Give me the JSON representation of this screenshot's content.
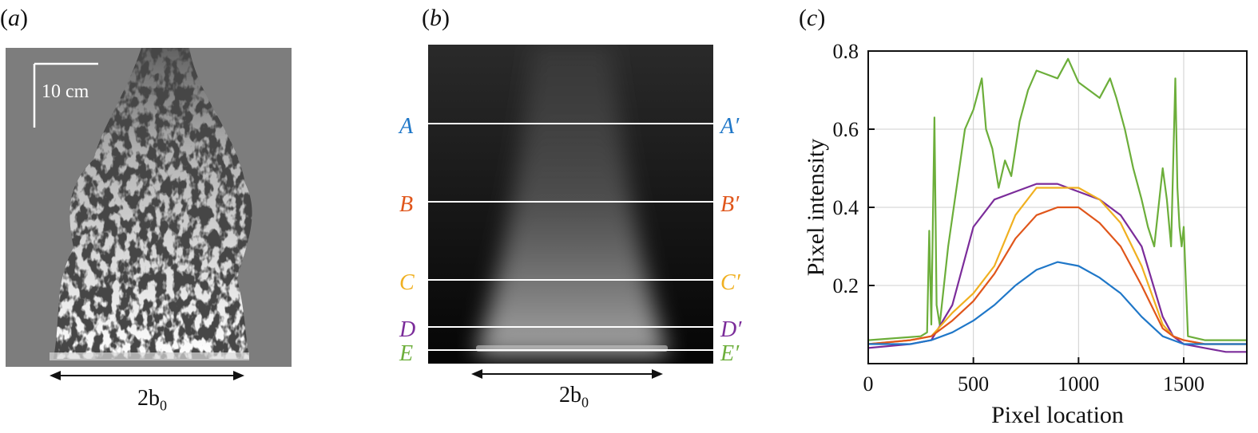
{
  "panels": {
    "a": {
      "label_open": "(",
      "letter": "a",
      "label_close": ")",
      "scale_text": "10 cm",
      "width_text": "2b",
      "width_sub": "0"
    },
    "b": {
      "label_open": "(",
      "letter": "b",
      "label_close": ")",
      "width_text": "2b",
      "width_sub": "0",
      "rows": [
        {
          "left": "A",
          "right": "A′",
          "color": "#1f77c8"
        },
        {
          "left": "B",
          "right": "B′",
          "color": "#e0561b"
        },
        {
          "left": "C",
          "right": "C′",
          "color": "#f0b020"
        },
        {
          "left": "D",
          "right": "D′",
          "color": "#7b2c9a"
        },
        {
          "left": "E",
          "right": "E′",
          "color": "#6cae3a"
        }
      ]
    },
    "c": {
      "label_open": "(",
      "letter": "c",
      "label_close": ")"
    }
  },
  "chart_data": {
    "type": "line",
    "xlabel": "Pixel location",
    "ylabel": "Pixel intensity",
    "xlim": [
      0,
      1800
    ],
    "ylim": [
      0,
      0.8
    ],
    "xticks": [
      0,
      500,
      1000,
      1500
    ],
    "yticks": [
      0.2,
      0.4,
      0.6,
      0.8
    ],
    "ytick_labels": [
      "0.2",
      "0.4",
      "0.6",
      "0.8"
    ],
    "grid": true,
    "legend": "none",
    "series": [
      {
        "color": "#6cae3a",
        "x": [
          0,
          250,
          280,
          290,
          300,
          315,
          325,
          340,
          380,
          420,
          460,
          500,
          540,
          560,
          590,
          620,
          650,
          680,
          720,
          760,
          800,
          850,
          900,
          950,
          1000,
          1050,
          1100,
          1150,
          1180,
          1220,
          1260,
          1300,
          1330,
          1360,
          1400,
          1420,
          1440,
          1460,
          1470,
          1480,
          1490,
          1500,
          1520,
          1600,
          1700,
          1800
        ],
        "y": [
          0.06,
          0.07,
          0.08,
          0.34,
          0.1,
          0.63,
          0.15,
          0.1,
          0.3,
          0.45,
          0.6,
          0.65,
          0.73,
          0.6,
          0.55,
          0.45,
          0.52,
          0.48,
          0.62,
          0.7,
          0.75,
          0.74,
          0.73,
          0.78,
          0.72,
          0.7,
          0.68,
          0.73,
          0.68,
          0.6,
          0.5,
          0.42,
          0.35,
          0.3,
          0.5,
          0.42,
          0.3,
          0.73,
          0.45,
          0.35,
          0.3,
          0.35,
          0.07,
          0.06,
          0.06,
          0.06
        ]
      },
      {
        "color": "#7b2c9a",
        "x": [
          0,
          200,
          300,
          400,
          500,
          600,
          700,
          800,
          900,
          1000,
          1100,
          1200,
          1300,
          1400,
          1450,
          1500,
          1600,
          1700,
          1800
        ],
        "y": [
          0.04,
          0.05,
          0.06,
          0.15,
          0.35,
          0.42,
          0.44,
          0.46,
          0.46,
          0.44,
          0.42,
          0.38,
          0.3,
          0.12,
          0.07,
          0.05,
          0.04,
          0.03,
          0.03
        ]
      },
      {
        "color": "#f0b020",
        "x": [
          0,
          200,
          300,
          400,
          500,
          600,
          700,
          800,
          900,
          1000,
          1100,
          1200,
          1300,
          1400,
          1450,
          1500,
          1600,
          1700,
          1800
        ],
        "y": [
          0.05,
          0.06,
          0.07,
          0.13,
          0.18,
          0.25,
          0.38,
          0.45,
          0.45,
          0.45,
          0.42,
          0.36,
          0.25,
          0.1,
          0.07,
          0.06,
          0.05,
          0.05,
          0.05
        ]
      },
      {
        "color": "#e0561b",
        "x": [
          0,
          200,
          300,
          400,
          500,
          600,
          700,
          800,
          900,
          1000,
          1100,
          1200,
          1300,
          1400,
          1450,
          1500,
          1600,
          1700,
          1800
        ],
        "y": [
          0.05,
          0.06,
          0.07,
          0.11,
          0.16,
          0.23,
          0.32,
          0.38,
          0.4,
          0.4,
          0.36,
          0.3,
          0.2,
          0.09,
          0.07,
          0.06,
          0.05,
          0.05,
          0.05
        ]
      },
      {
        "color": "#1f77c8",
        "x": [
          0,
          200,
          300,
          400,
          500,
          600,
          700,
          800,
          900,
          1000,
          1100,
          1200,
          1300,
          1400,
          1450,
          1500,
          1600,
          1700,
          1800
        ],
        "y": [
          0.05,
          0.05,
          0.06,
          0.08,
          0.11,
          0.15,
          0.2,
          0.24,
          0.26,
          0.25,
          0.22,
          0.18,
          0.12,
          0.07,
          0.06,
          0.05,
          0.05,
          0.05,
          0.05
        ]
      }
    ]
  }
}
